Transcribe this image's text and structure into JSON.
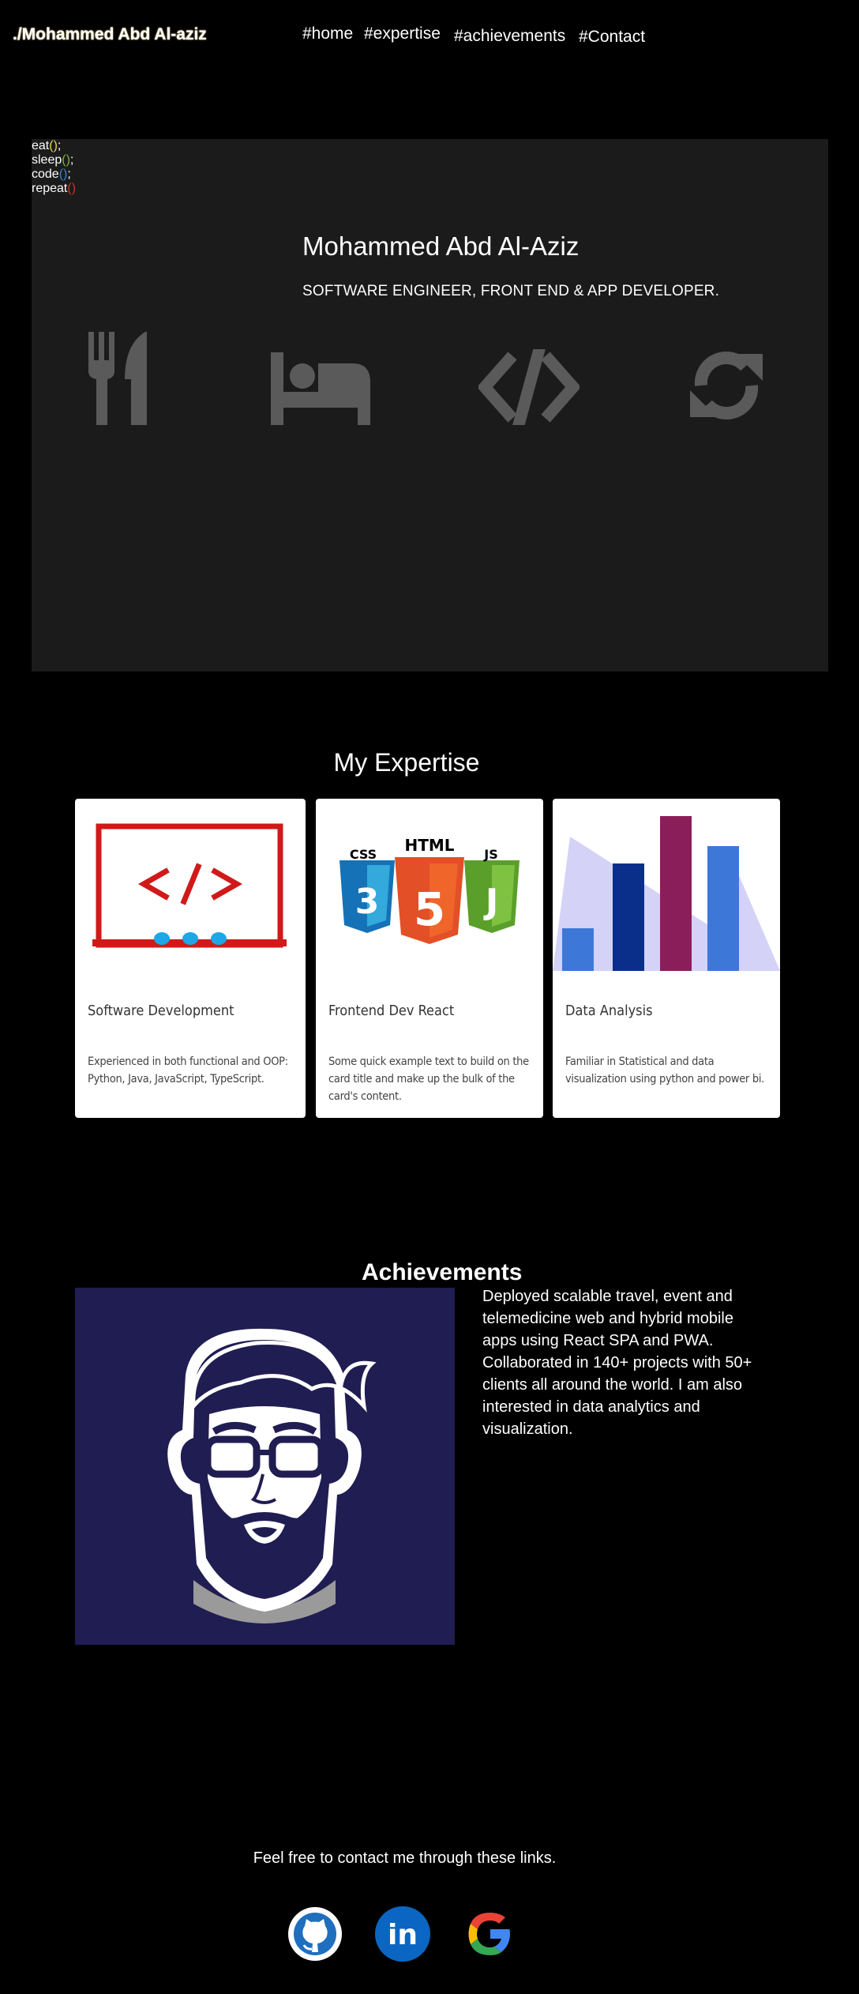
{
  "nav": {
    "brand": "./Mohammed Abd Al-aziz",
    "links": [
      "#home",
      "#expertise",
      "#achievements",
      "#Contact"
    ]
  },
  "hero": {
    "name": "Mohammed Abd Al-Aziz",
    "role": "SOFTWARE ENGINEER, FRONT END &  APP DEVELOPER.",
    "routine": [
      {
        "word": "eat",
        "icon": "fork-knife-icon",
        "paren_color": "#e6d84a",
        "suffix": ";"
      },
      {
        "word": "sleep",
        "icon": "bed-icon",
        "paren_color": "#7cb342",
        "suffix": ";"
      },
      {
        "word": "code",
        "icon": "code-brackets-icon",
        "paren_color": "#3b7fd4",
        "suffix": ";"
      },
      {
        "word": "repeat",
        "icon": "refresh-icon",
        "paren_color": "#c0392b",
        "suffix": ""
      }
    ],
    "parens": "()"
  },
  "expertise": {
    "title": "My Expertise",
    "cards": [
      {
        "title": "Software Development",
        "text": "Experienced in both functional and OOP: Python, Java, JavaScript, TypeScript.",
        "icon": "monitor-code-icon"
      },
      {
        "title": "Frontend Dev React",
        "text": "Some quick example text to build on the card title and make up the bulk of the card's content.",
        "icon": "html-css-js-icon",
        "badges": [
          "CSS",
          "HTML",
          "JS"
        ]
      },
      {
        "title": "Data Analysis",
        "text": "Familiar in Statistical and data visualization using python and power bi.",
        "icon": "bar-chart-icon"
      }
    ]
  },
  "achievements": {
    "title": "Achievements",
    "text": "Deployed scalable travel, event and telemedicine web and hybrid mobile apps using React SPA and PWA. Collaborated in 140+ projects with 50+ clients all around the world. I am also interested in data analytics and visualization."
  },
  "contact": {
    "text": "Feel free to contact me through these links.",
    "links": [
      {
        "name": "github",
        "icon": "github-icon"
      },
      {
        "name": "linkedin",
        "icon": "linkedin-icon",
        "label": "in"
      },
      {
        "name": "google",
        "icon": "google-icon"
      }
    ]
  },
  "colors": {
    "background": "#000000",
    "hero_panel": "#1b1b1b",
    "avatar_bg": "#201d52",
    "routine_gray": "#8a8a8a",
    "linkedin": "#0a66c2"
  }
}
